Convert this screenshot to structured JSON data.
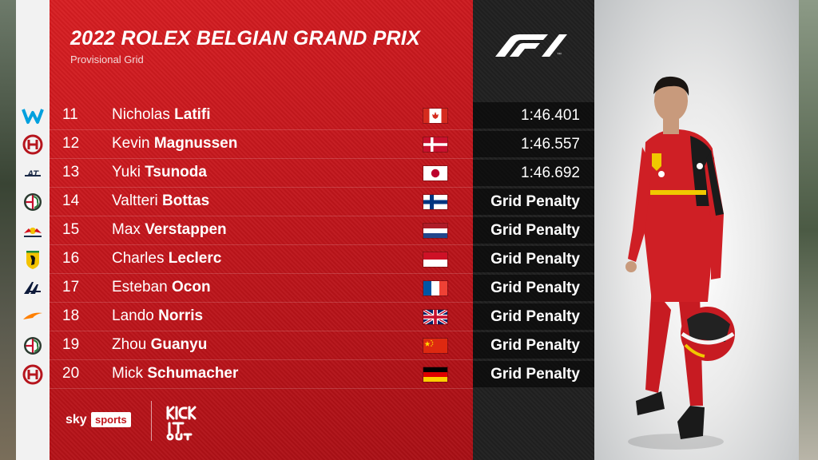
{
  "header": {
    "title": "2022 ROLEX BELGIAN GRAND PRIX",
    "subtitle": "Provisional Grid"
  },
  "branding": {
    "f1_logo": "f1-logo",
    "broadcaster_sky": "sky",
    "broadcaster_sports": "sports",
    "campaign_logo": "kick-it-out-logo"
  },
  "colors": {
    "panel_red": "#c2161c",
    "times_panel": "#222222",
    "text": "#ffffff"
  },
  "grid": [
    {
      "pos": "11",
      "first": "Nicholas",
      "last": "Latifi",
      "team_icon": "williams-logo",
      "flag": "canada",
      "time": "1:46.401"
    },
    {
      "pos": "12",
      "first": "Kevin",
      "last": "Magnussen",
      "team_icon": "haas-logo",
      "flag": "denmark",
      "time": "1:46.557"
    },
    {
      "pos": "13",
      "first": "Yuki",
      "last": "Tsunoda",
      "team_icon": "alphatauri-logo",
      "flag": "japan",
      "time": "1:46.692"
    },
    {
      "pos": "14",
      "first": "Valtteri",
      "last": "Bottas",
      "team_icon": "alfa-romeo-logo",
      "flag": "finland",
      "time": "Grid Penalty"
    },
    {
      "pos": "15",
      "first": "Max",
      "last": "Verstappen",
      "team_icon": "red-bull-logo",
      "flag": "netherlands",
      "time": "Grid Penalty"
    },
    {
      "pos": "16",
      "first": "Charles",
      "last": "Leclerc",
      "team_icon": "ferrari-logo",
      "flag": "monaco",
      "time": "Grid Penalty"
    },
    {
      "pos": "17",
      "first": "Esteban",
      "last": "Ocon",
      "team_icon": "alpine-logo",
      "flag": "france",
      "time": "Grid Penalty"
    },
    {
      "pos": "18",
      "first": "Lando",
      "last": "Norris",
      "team_icon": "mclaren-logo",
      "flag": "united-kingdom",
      "time": "Grid Penalty"
    },
    {
      "pos": "19",
      "first": "Zhou",
      "last": "Guanyu",
      "team_icon": "alfa-romeo-logo",
      "flag": "china",
      "time": "Grid Penalty"
    },
    {
      "pos": "20",
      "first": "Mick",
      "last": "Schumacher",
      "team_icon": "haas-logo",
      "flag": "germany",
      "time": "Grid Penalty"
    }
  ]
}
